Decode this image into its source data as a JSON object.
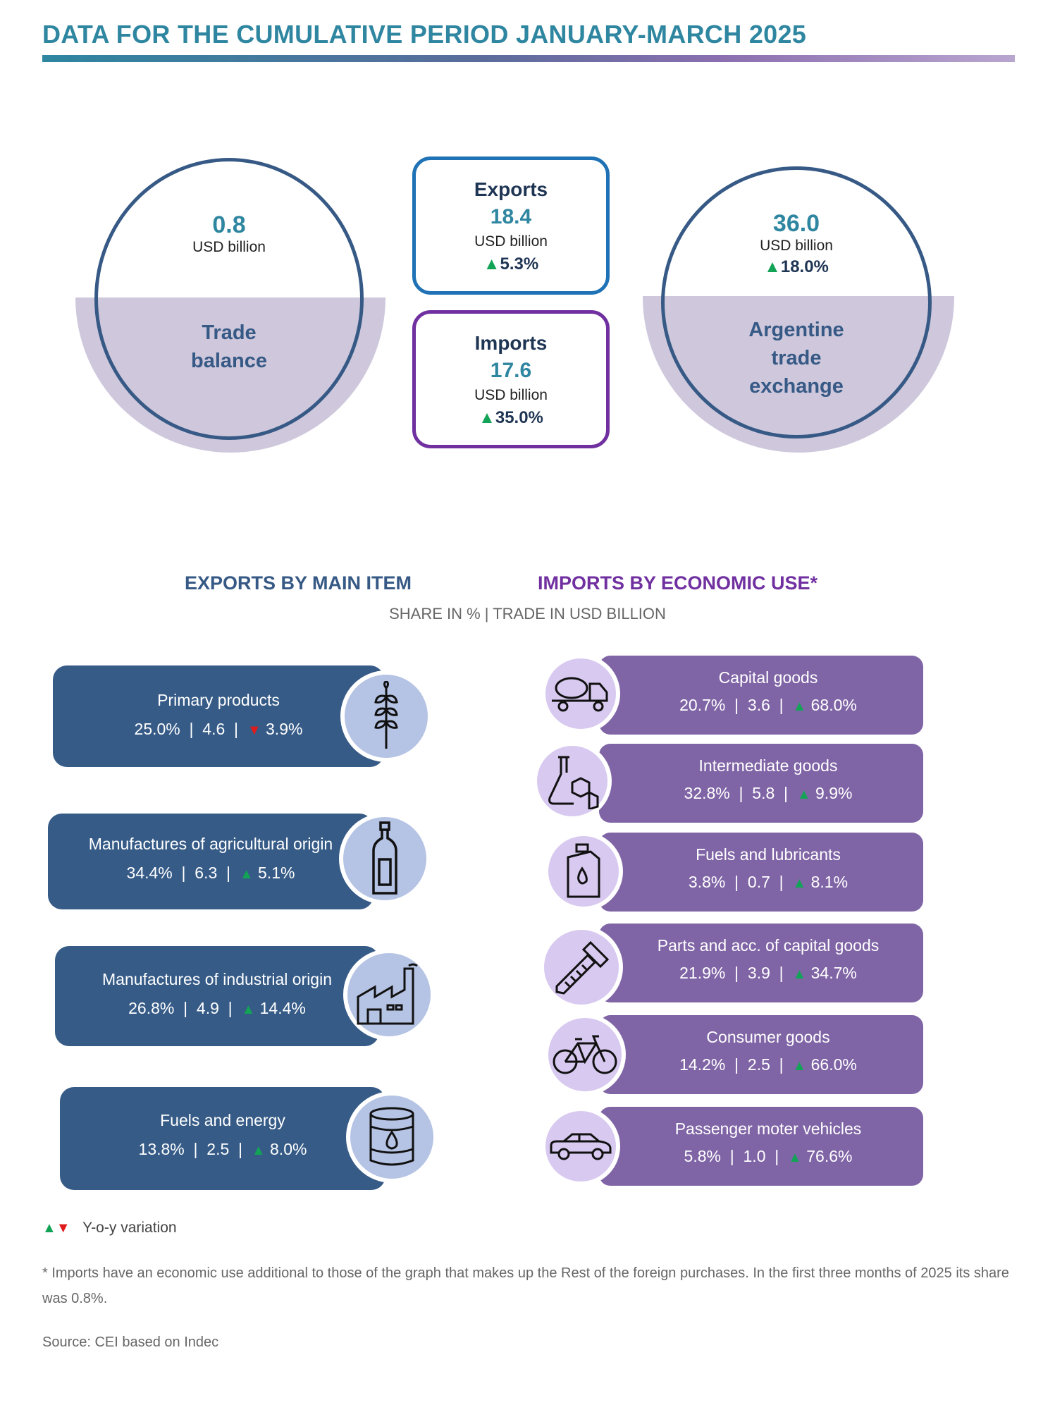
{
  "header": {
    "title": "DATA FOR THE CUMULATIVE PERIOD JANUARY-MARCH 2025"
  },
  "summary": {
    "trade_balance": {
      "value": "0.8",
      "unit": "USD billion",
      "label_line1": "Trade",
      "label_line2": "balance"
    },
    "exports": {
      "title": "Exports",
      "value": "18.4",
      "unit": "USD billion",
      "change": "5.3%",
      "direction": "up"
    },
    "imports": {
      "title": "Imports",
      "value": "17.6",
      "unit": "USD billion",
      "change": "35.0%",
      "direction": "up"
    },
    "trade_exchange": {
      "value": "36.0",
      "unit": "USD billion",
      "change": "18.0%",
      "direction": "up",
      "label_line1": "Argentine",
      "label_line2": "trade",
      "label_line3": "exchange"
    }
  },
  "sections": {
    "exports_title": "EXPORTS BY MAIN ITEM",
    "imports_title": "IMPORTS BY ECONOMIC USE*",
    "subtitle": "SHARE IN % | TRADE IN USD BILLION"
  },
  "colors": {
    "up": "#13a356",
    "down": "#e01b1b",
    "exports_card": "#365b87",
    "imports_card": "#8065a6"
  },
  "exports_items": [
    {
      "name": "Primary products",
      "share": "25.0%",
      "value": "4.6",
      "change": "3.9%",
      "direction": "down",
      "icon": "wheat-icon"
    },
    {
      "name": "Manufactures of agricultural origin",
      "share": "34.4%",
      "value": "6.3",
      "change": "5.1%",
      "direction": "up",
      "icon": "bottle-icon"
    },
    {
      "name": "Manufactures of industrial origin",
      "share": "26.8%",
      "value": "4.9",
      "change": "14.4%",
      "direction": "up",
      "icon": "factory-icon"
    },
    {
      "name": "Fuels and energy",
      "share": "13.8%",
      "value": "2.5",
      "change": "8.0%",
      "direction": "up",
      "icon": "oil-barrel-icon"
    }
  ],
  "imports_items": [
    {
      "name": "Capital goods",
      "share": "20.7%",
      "value": "3.6",
      "change": "68.0%",
      "direction": "up",
      "icon": "concrete-truck-icon"
    },
    {
      "name": "Intermediate goods",
      "share": "32.8%",
      "value": "5.8",
      "change": "9.9%",
      "direction": "up",
      "icon": "chemistry-flask-icon"
    },
    {
      "name": "Fuels and lubricants",
      "share": "3.8%",
      "value": "0.7",
      "change": "8.1%",
      "direction": "up",
      "icon": "oil-can-icon"
    },
    {
      "name": "Parts and acc. of capital goods",
      "share": "21.9%",
      "value": "3.9",
      "change": "34.7%",
      "direction": "up",
      "icon": "screw-icon"
    },
    {
      "name": "Consumer goods",
      "share": "14.2%",
      "value": "2.5",
      "change": "66.0%",
      "direction": "up",
      "icon": "bicycle-icon"
    },
    {
      "name": "Passenger moter vehicles",
      "share": "5.8%",
      "value": "1.0",
      "change": "76.6%",
      "direction": "up",
      "icon": "car-icon"
    }
  ],
  "footer": {
    "legend_label": "Y-o-y variation",
    "note": "* Imports have an economic use additional to those of the graph that makes up the Rest of the foreign purchases. In the first three months of 2025 its share was 0.8%.",
    "source": "Source: CEI based on Indec"
  }
}
